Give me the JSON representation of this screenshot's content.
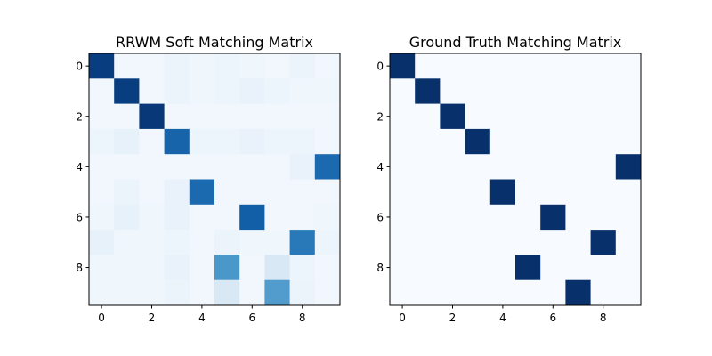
{
  "chart_data": [
    {
      "type": "heatmap",
      "title": "RRWM Soft Matching Matrix",
      "colormap": "Blues",
      "vmin": 0,
      "vmax": 1,
      "x_ticks": [
        "0",
        "2",
        "4",
        "6",
        "8"
      ],
      "y_ticks": [
        "0",
        "2",
        "4",
        "6",
        "8"
      ],
      "x_tick_positions": [
        0,
        2,
        4,
        6,
        8
      ],
      "y_tick_positions": [
        0,
        2,
        4,
        6,
        8
      ],
      "grid": false,
      "values": [
        [
          0.95,
          0.03,
          0.03,
          0.06,
          0.04,
          0.05,
          0.04,
          0.03,
          0.06,
          0.03
        ],
        [
          0.03,
          0.95,
          0.03,
          0.06,
          0.04,
          0.05,
          0.07,
          0.05,
          0.04,
          0.04
        ],
        [
          0.03,
          0.03,
          0.97,
          0.03,
          0.03,
          0.03,
          0.03,
          0.03,
          0.03,
          0.03
        ],
        [
          0.05,
          0.08,
          0.03,
          0.8,
          0.05,
          0.05,
          0.07,
          0.05,
          0.05,
          0.03
        ],
        [
          0.03,
          0.03,
          0.03,
          0.03,
          0.03,
          0.03,
          0.03,
          0.03,
          0.07,
          0.78
        ],
        [
          0.03,
          0.06,
          0.03,
          0.07,
          0.78,
          0.03,
          0.03,
          0.03,
          0.03,
          0.03
        ],
        [
          0.04,
          0.08,
          0.04,
          0.07,
          0.03,
          0.03,
          0.82,
          0.03,
          0.03,
          0.04
        ],
        [
          0.08,
          0.04,
          0.04,
          0.05,
          0.03,
          0.06,
          0.04,
          0.04,
          0.72,
          0.05
        ],
        [
          0.04,
          0.04,
          0.04,
          0.07,
          0.03,
          0.6,
          0.03,
          0.15,
          0.05,
          0.03
        ],
        [
          0.04,
          0.04,
          0.04,
          0.06,
          0.03,
          0.15,
          0.03,
          0.58,
          0.06,
          0.03
        ]
      ]
    },
    {
      "type": "heatmap",
      "title": "Ground Truth Matching Matrix",
      "colormap": "Blues",
      "vmin": 0,
      "vmax": 1,
      "x_ticks": [
        "0",
        "2",
        "4",
        "6",
        "8"
      ],
      "y_ticks": [
        "0",
        "2",
        "4",
        "6",
        "8"
      ],
      "x_tick_positions": [
        0,
        2,
        4,
        6,
        8
      ],
      "y_tick_positions": [
        0,
        2,
        4,
        6,
        8
      ],
      "grid": false,
      "values": [
        [
          1,
          0,
          0,
          0,
          0,
          0,
          0,
          0,
          0,
          0
        ],
        [
          0,
          1,
          0,
          0,
          0,
          0,
          0,
          0,
          0,
          0
        ],
        [
          0,
          0,
          1,
          0,
          0,
          0,
          0,
          0,
          0,
          0
        ],
        [
          0,
          0,
          0,
          1,
          0,
          0,
          0,
          0,
          0,
          0
        ],
        [
          0,
          0,
          0,
          0,
          0,
          0,
          0,
          0,
          0,
          1
        ],
        [
          0,
          0,
          0,
          0,
          1,
          0,
          0,
          0,
          0,
          0
        ],
        [
          0,
          0,
          0,
          0,
          0,
          0,
          1,
          0,
          0,
          0
        ],
        [
          0,
          0,
          0,
          0,
          0,
          0,
          0,
          0,
          1,
          0
        ],
        [
          0,
          0,
          0,
          0,
          0,
          1,
          0,
          0,
          0,
          0
        ],
        [
          0,
          0,
          0,
          0,
          0,
          0,
          0,
          1,
          0,
          0
        ]
      ]
    }
  ]
}
